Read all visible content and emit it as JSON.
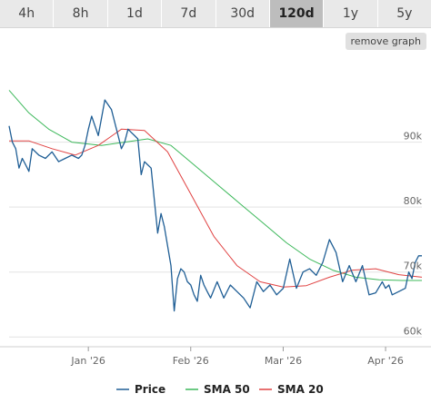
{
  "tabs": [
    {
      "label": "4h",
      "active": false
    },
    {
      "label": "8h",
      "active": false
    },
    {
      "label": "1d",
      "active": false
    },
    {
      "label": "7d",
      "active": false
    },
    {
      "label": "30d",
      "active": false
    },
    {
      "label": "120d",
      "active": true
    },
    {
      "label": "1y",
      "active": false
    },
    {
      "label": "5y",
      "active": false
    }
  ],
  "remove_graph_label": "remove graph",
  "chart_data": {
    "type": "line",
    "x_ticks": [
      "Jan '26",
      "Feb '26",
      "Mar '26",
      "Apr '26"
    ],
    "y_ticks": [
      60000,
      70000,
      80000,
      90000
    ],
    "y_tick_labels": [
      "60k",
      "70k",
      "80k",
      "90k"
    ],
    "ylim": [
      58500,
      103500
    ],
    "legend_position": "bottom",
    "grid": "horizontal",
    "series": [
      {
        "name": "Price",
        "color": "#1f5e95",
        "x": [
          "2025-12-08",
          "2025-12-09",
          "2025-12-10",
          "2025-12-11",
          "2025-12-12",
          "2025-12-13",
          "2025-12-14",
          "2025-12-15",
          "2025-12-17",
          "2025-12-19",
          "2025-12-21",
          "2025-12-23",
          "2025-12-25",
          "2025-12-27",
          "2025-12-29",
          "2025-12-30",
          "2025-12-31",
          "2026-01-01",
          "2026-01-02",
          "2026-01-04",
          "2026-01-06",
          "2026-01-08",
          "2026-01-10",
          "2026-01-11",
          "2026-01-12",
          "2026-01-13",
          "2026-01-14",
          "2026-01-15",
          "2026-01-16",
          "2026-01-17",
          "2026-01-18",
          "2026-01-20",
          "2026-01-21",
          "2026-01-22",
          "2026-01-23",
          "2026-01-24",
          "2026-01-26",
          "2026-01-27",
          "2026-01-28",
          "2026-01-29",
          "2026-01-30",
          "2026-01-31",
          "2026-02-01",
          "2026-02-02",
          "2026-02-03",
          "2026-02-04",
          "2026-02-05",
          "2026-02-06",
          "2026-02-07",
          "2026-02-09",
          "2026-02-11",
          "2026-02-13",
          "2026-02-15",
          "2026-02-17",
          "2026-02-19",
          "2026-02-21",
          "2026-02-23",
          "2026-02-25",
          "2026-02-27",
          "2026-03-01",
          "2026-03-03",
          "2026-03-05",
          "2026-03-07",
          "2026-03-09",
          "2026-03-11",
          "2026-03-13",
          "2026-03-15",
          "2026-03-17",
          "2026-03-19",
          "2026-03-21",
          "2026-03-23",
          "2026-03-25",
          "2026-03-27",
          "2026-03-29",
          "2026-03-31",
          "2026-04-01",
          "2026-04-02",
          "2026-04-03",
          "2026-04-05",
          "2026-04-07",
          "2026-04-08",
          "2026-04-09",
          "2026-04-10",
          "2026-04-11",
          "2026-04-12"
        ],
        "y": [
          92500,
          90000,
          89000,
          86000,
          87500,
          86500,
          85500,
          89000,
          88000,
          87500,
          88500,
          87000,
          87500,
          88000,
          87500,
          88000,
          89500,
          92000,
          94000,
          91000,
          96500,
          95000,
          91000,
          89000,
          90000,
          92000,
          91500,
          91000,
          90500,
          85000,
          87000,
          86000,
          81000,
          76000,
          79000,
          77000,
          71000,
          64000,
          69000,
          70500,
          70000,
          68500,
          68000,
          66500,
          65500,
          69500,
          68000,
          67000,
          66000,
          68500,
          66000,
          68000,
          67000,
          66000,
          64500,
          68500,
          67000,
          68000,
          66500,
          67500,
          72000,
          67500,
          70000,
          70500,
          69500,
          71500,
          75000,
          73000,
          68500,
          71000,
          68500,
          71000,
          66500,
          66800,
          68500,
          67500,
          68000,
          66500,
          67000,
          67500,
          70000,
          69000,
          71500,
          72500,
          72500
        ]
      },
      {
        "name": "SMA 50",
        "color": "#3cb85a",
        "x": [
          "2025-12-08",
          "2025-12-14",
          "2025-12-20",
          "2025-12-27",
          "2026-01-05",
          "2026-01-12",
          "2026-01-19",
          "2026-01-26",
          "2026-02-02",
          "2026-02-09",
          "2026-02-16",
          "2026-02-23",
          "2026-03-02",
          "2026-03-09",
          "2026-03-16",
          "2026-03-23",
          "2026-03-30",
          "2026-04-06",
          "2026-04-12"
        ],
        "y": [
          98000,
          94500,
          92000,
          90000,
          89500,
          90000,
          90500,
          89500,
          86500,
          83500,
          80500,
          77500,
          74500,
          72000,
          70300,
          69200,
          68800,
          68700,
          68700
        ]
      },
      {
        "name": "SMA 20",
        "color": "#e04242",
        "x": [
          "2025-12-08",
          "2025-12-14",
          "2025-12-21",
          "2025-12-28",
          "2026-01-04",
          "2026-01-11",
          "2026-01-18",
          "2026-01-25",
          "2026-02-01",
          "2026-02-08",
          "2026-02-15",
          "2026-02-22",
          "2026-03-01",
          "2026-03-08",
          "2026-03-15",
          "2026-03-22",
          "2026-03-29",
          "2026-04-05",
          "2026-04-12"
        ],
        "y": [
          90200,
          90200,
          89000,
          88000,
          89500,
          92000,
          91800,
          88500,
          82000,
          75500,
          71000,
          68500,
          67700,
          67900,
          69200,
          70300,
          70500,
          69600,
          69200
        ]
      }
    ]
  }
}
